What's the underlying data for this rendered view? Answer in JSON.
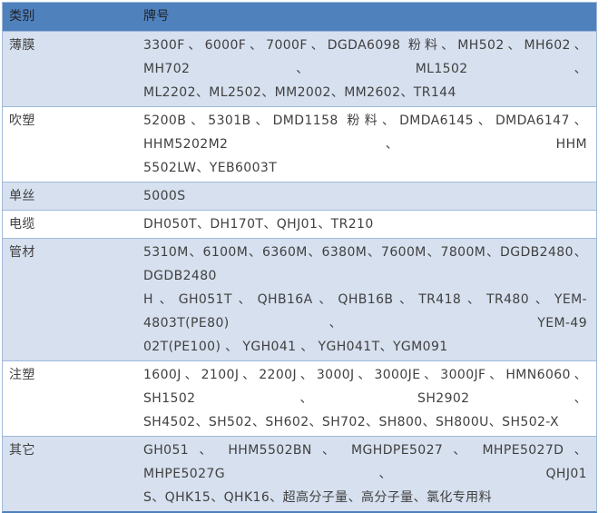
{
  "table": {
    "header": {
      "category": "类别",
      "grade": "牌号"
    },
    "rows": [
      {
        "category": "薄膜",
        "lines": [
          "3300F、6000F、7000F、DGDA6098 粉料、MH502、MH602、MH702、ML1502、",
          "ML2202、ML2502、MM2002、MM2602、TR144"
        ]
      },
      {
        "category": "吹塑",
        "lines": [
          "5200B、5301B、DMD1158 粉料、DMDA6145、DMDA6147、HHM5202M2、HHM",
          "5502LW、YEB6003T"
        ]
      },
      {
        "category": "单丝",
        "lines": [
          "5000S"
        ]
      },
      {
        "category": "电缆",
        "lines": [
          "DH050T、DH170T、QHJ01、TR210"
        ]
      },
      {
        "category": "管材",
        "lines": [
          "5310M、6100M、6360M、6380M、7600M、7800M、DGDB2480、DGDB2480",
          "H、GH051T、QHB16A、QHB16B、TR418、TR480、YEM-4803T(PE80) 、 YEM-49",
          "02T(PE100) 、 YGH041 、 YGH041T、YGM091"
        ]
      },
      {
        "category": "注塑",
        "lines": [
          "1600J、2100J、2200J、3000J、3000JE、3000JF、HMN6060、SH1502、SH2902、",
          "SH4502、SH502、SH602、SH702、SH800、SH800U、SH502-X"
        ]
      },
      {
        "category": "其它",
        "lines": [
          "GH051 、 HHM5502BN 、 MGHDPE5027 、 MHPE5027D 、 MHPE5027G、QHJ01",
          "S、QHK15、QHK16、超高分子量、高分子量、氯化专用料"
        ]
      }
    ]
  },
  "colors": {
    "header_bg": "#4f81bd",
    "band_bg": "#d6e0ef",
    "row_border": "#9fb9db",
    "bottom_border": "#4f81bd",
    "header_text": "#1f2328",
    "body_text": "#404040"
  }
}
